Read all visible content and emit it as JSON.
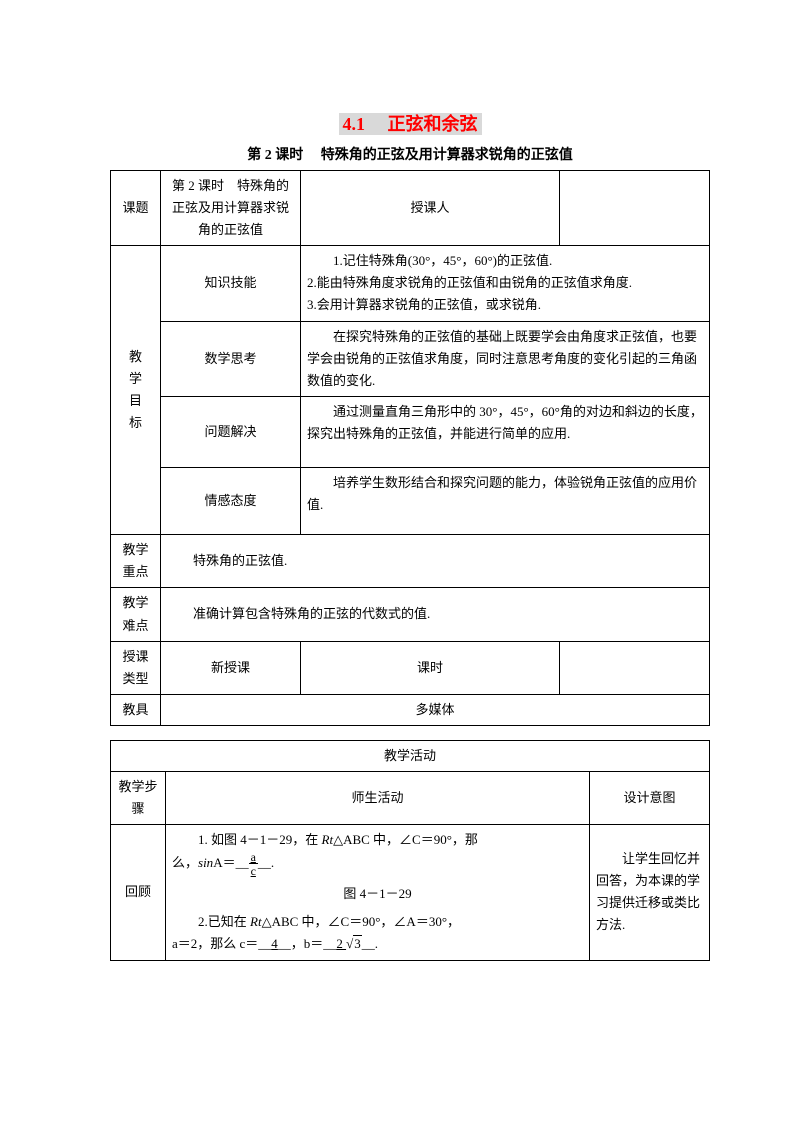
{
  "title": "4.1　 正弦和余弦",
  "subtitle": "第 2 课时　 特殊角的正弦及用计算器求锐角的正弦值",
  "row1": {
    "label": "课题",
    "c1": "第 2 课时　特殊角的正弦及用计算器求锐角的正弦值",
    "c2": "授课人",
    "c3": ""
  },
  "goals_label": "教学目标",
  "goals": {
    "knowledge": {
      "label": "知识技能",
      "text": "1.记住特殊角(30°，45°，60°)的正弦值.\n2.能由特殊角度求锐角的正弦值和由锐角的正弦值求角度.\n3.会用计算器求锐角的正弦值，或求锐角."
    },
    "thinking": {
      "label": "数学思考",
      "text": "在探究特殊角的正弦值的基础上既要学会由角度求正弦值，也要学会由锐角的正弦值求角度，同时注意思考角度的变化引起的三角函数值的变化."
    },
    "solving": {
      "label": "问题解决",
      "text": "通过测量直角三角形中的 30°，45°，60°角的对边和斜边的长度，探究出特殊角的正弦值，并能进行简单的应用."
    },
    "attitude": {
      "label": "情感态度",
      "text": "培养学生数形结合和探究问题的能力，体验锐角正弦值的应用价值."
    }
  },
  "key": {
    "label": "教学重点",
    "text": "特殊角的正弦值."
  },
  "diff": {
    "label": "教学难点",
    "text": "准确计算包含特殊角的正弦的代数式的值."
  },
  "type": {
    "label": "授课类型",
    "c1": "新授课",
    "c2": "课时",
    "c3": ""
  },
  "tool": {
    "label": "教具",
    "text": "多媒体"
  },
  "table2": {
    "header": "教学活动",
    "cols": {
      "c1": "教学步骤",
      "c2": "师生活动",
      "c3": "设计意图"
    },
    "review": {
      "label": "回顾",
      "line1a": "1. 如图 4－1－29，在 ",
      "line1b": "△ABC 中，∠C＝90°，那",
      "line2a": "么，",
      "sin": "sin",
      "line2b": "A＝__",
      "ans1num": "a",
      "ans1den": "c",
      "line2c": "__.",
      "fig": "图 4－1－29",
      "line3a": "2.已知在 ",
      "line3b": "△ABC 中，∠C＝90°，∠A＝30°，",
      "line4a": "a＝2，那么 c＝__",
      "ans4": "4",
      "line4b": "__，b＝__",
      "ans5a": "2 ",
      "ans5b": "3",
      "line4c": "__.",
      "intent": "让学生回忆并回答，为本课的学习提供迁移或类比方法."
    }
  }
}
